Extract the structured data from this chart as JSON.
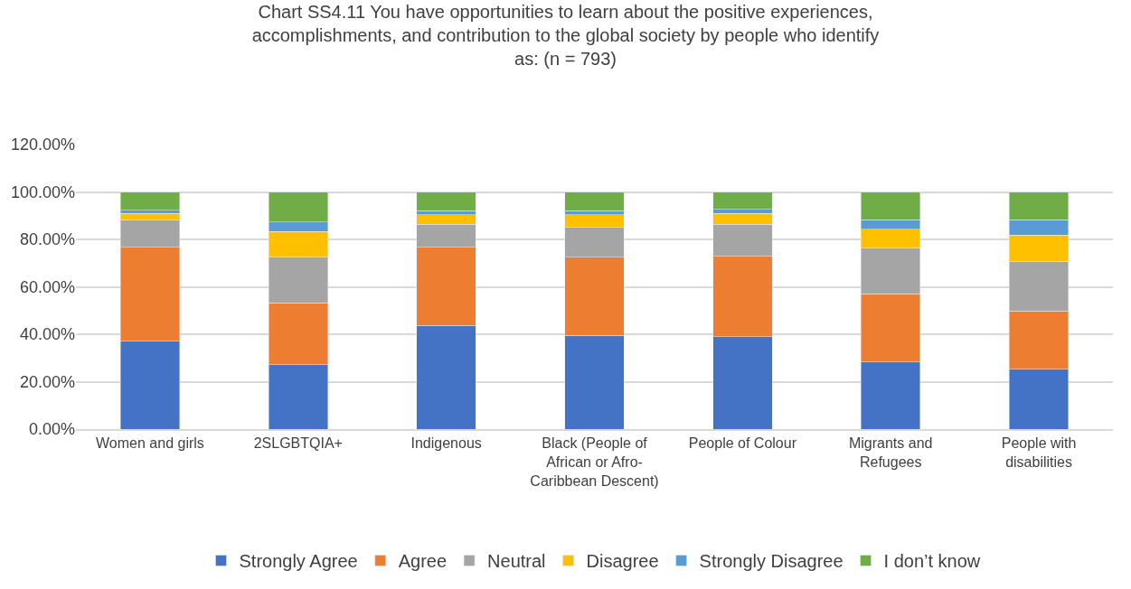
{
  "chart_data": {
    "type": "bar",
    "stacked": true,
    "title": "Chart SS4.11 You have opportunities to learn about the positive experiences, accomplishments, and contribution to the global society by people who identify as: (n = 793)",
    "categories": [
      "Women and girls",
      "2SLGBTQIA+",
      "Indigenous",
      "Black (People of African or Afro-Caribbean Descent)",
      "People of Colour",
      "Migrants and Refugees",
      "People with disabilities"
    ],
    "series": [
      {
        "name": "Strongly Agree",
        "color": "#4472c4",
        "values": [
          37.1,
          27.1,
          43.8,
          39.6,
          38.9,
          28.2,
          25.3
        ]
      },
      {
        "name": "Agree",
        "color": "#ed7d31",
        "values": [
          39.6,
          26.2,
          32.9,
          32.9,
          34.0,
          28.9,
          24.6
        ]
      },
      {
        "name": "Neutral",
        "color": "#a5a5a5",
        "values": [
          11.5,
          19.2,
          9.6,
          12.5,
          13.4,
          19.2,
          20.9
        ]
      },
      {
        "name": "Disagree",
        "color": "#ffc000",
        "values": [
          2.8,
          10.8,
          4.1,
          5.3,
          4.7,
          8.0,
          11.0
        ]
      },
      {
        "name": "Strongly Disagree",
        "color": "#5b9bd5",
        "values": [
          1.2,
          4.1,
          1.7,
          1.8,
          1.6,
          4.0,
          6.5
        ]
      },
      {
        "name": "I don’t know",
        "color": "#70ad47",
        "values": [
          7.8,
          12.6,
          7.9,
          7.9,
          7.4,
          11.7,
          11.7
        ]
      }
    ],
    "ylim": [
      0,
      120
    ],
    "yticks": [
      {
        "value": 0,
        "label": "0.00%"
      },
      {
        "value": 20,
        "label": "20.00%"
      },
      {
        "value": 40,
        "label": "40.00%"
      },
      {
        "value": 60,
        "label": "60.00%"
      },
      {
        "value": 80,
        "label": "80.00%"
      },
      {
        "value": 100,
        "label": "100.00%"
      },
      {
        "value": 120,
        "label": "120.00%"
      }
    ],
    "grid": "y",
    "legend": "bottom"
  }
}
